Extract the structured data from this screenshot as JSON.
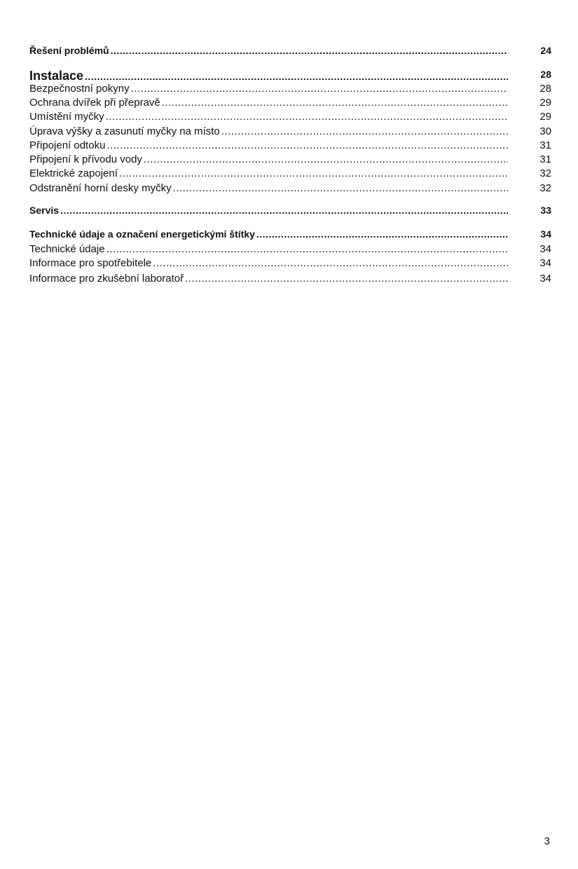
{
  "toc": [
    {
      "title": "Řešení problémů",
      "page": "24",
      "style": "bold"
    },
    {
      "title": "Instalace",
      "page": "28",
      "style": "big"
    },
    {
      "title": "Bezpečnostní pokyny",
      "page": "28",
      "style": "normal"
    },
    {
      "title": "Ochrana dvířek při přepravě",
      "page": "29",
      "style": "normal"
    },
    {
      "title": "Umístění myčky",
      "page": "29",
      "style": "normal"
    },
    {
      "title": "Úprava výšky a zasunutí myčky na místo",
      "page": "30",
      "style": "normal"
    },
    {
      "title": "Připojení odtoku",
      "page": "31",
      "style": "normal"
    },
    {
      "title": "Připojení k přívodu vody",
      "page": "31",
      "style": "normal"
    },
    {
      "title": "Elektrické  zapojení",
      "page": "32",
      "style": "normal"
    },
    {
      "title": "Odstranění horní desky myčky",
      "page": "32",
      "style": "normal"
    },
    {
      "title": "Servis",
      "page": "33",
      "style": "bold"
    },
    {
      "title": "Technické údaje a označení energetickými štítky",
      "page": "34",
      "style": "bold"
    },
    {
      "title": "Technické údaje",
      "page": "34",
      "style": "normal"
    },
    {
      "title": "Informace pro spotřebitele",
      "page": "34",
      "style": "normal"
    },
    {
      "title": "Informace pro zkušební laboratoř",
      "page": "34",
      "style": "normal"
    }
  ],
  "page_number": "3"
}
